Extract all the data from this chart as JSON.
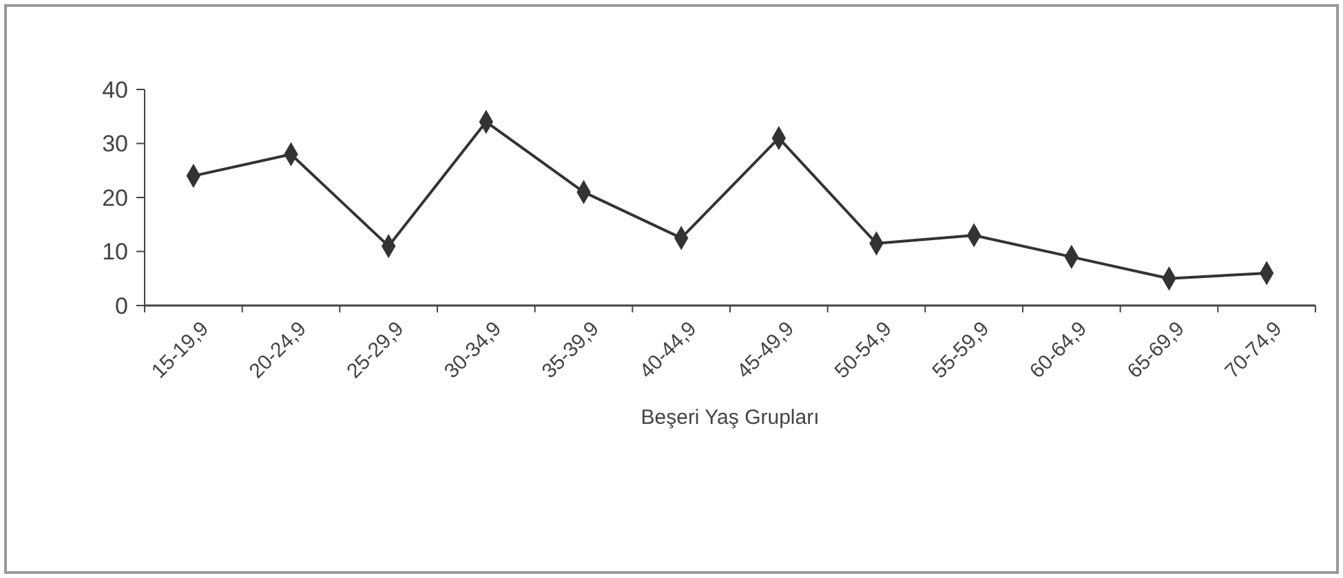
{
  "chart_data": {
    "type": "line",
    "xlabel": "Beşeri Yaş Grupları",
    "categories": [
      "15-19,9",
      "20-24,9",
      "25-29,9",
      "30-34,9",
      "35-39,9",
      "40-44,9",
      "45-49,9",
      "50-54,9",
      "55-59,9",
      "60-64,9",
      "65-69,9",
      "70-74,9"
    ],
    "series": [
      {
        "color": "#333333",
        "values": [
          24,
          28,
          11,
          34,
          21,
          12.5,
          31,
          11.5,
          13,
          9,
          5,
          6
        ]
      }
    ],
    "ylim": [
      0,
      40
    ],
    "yticks": [
      0,
      10,
      20,
      30,
      40
    ],
    "marker": "diamond",
    "line_style": "solid",
    "grid": false
  }
}
